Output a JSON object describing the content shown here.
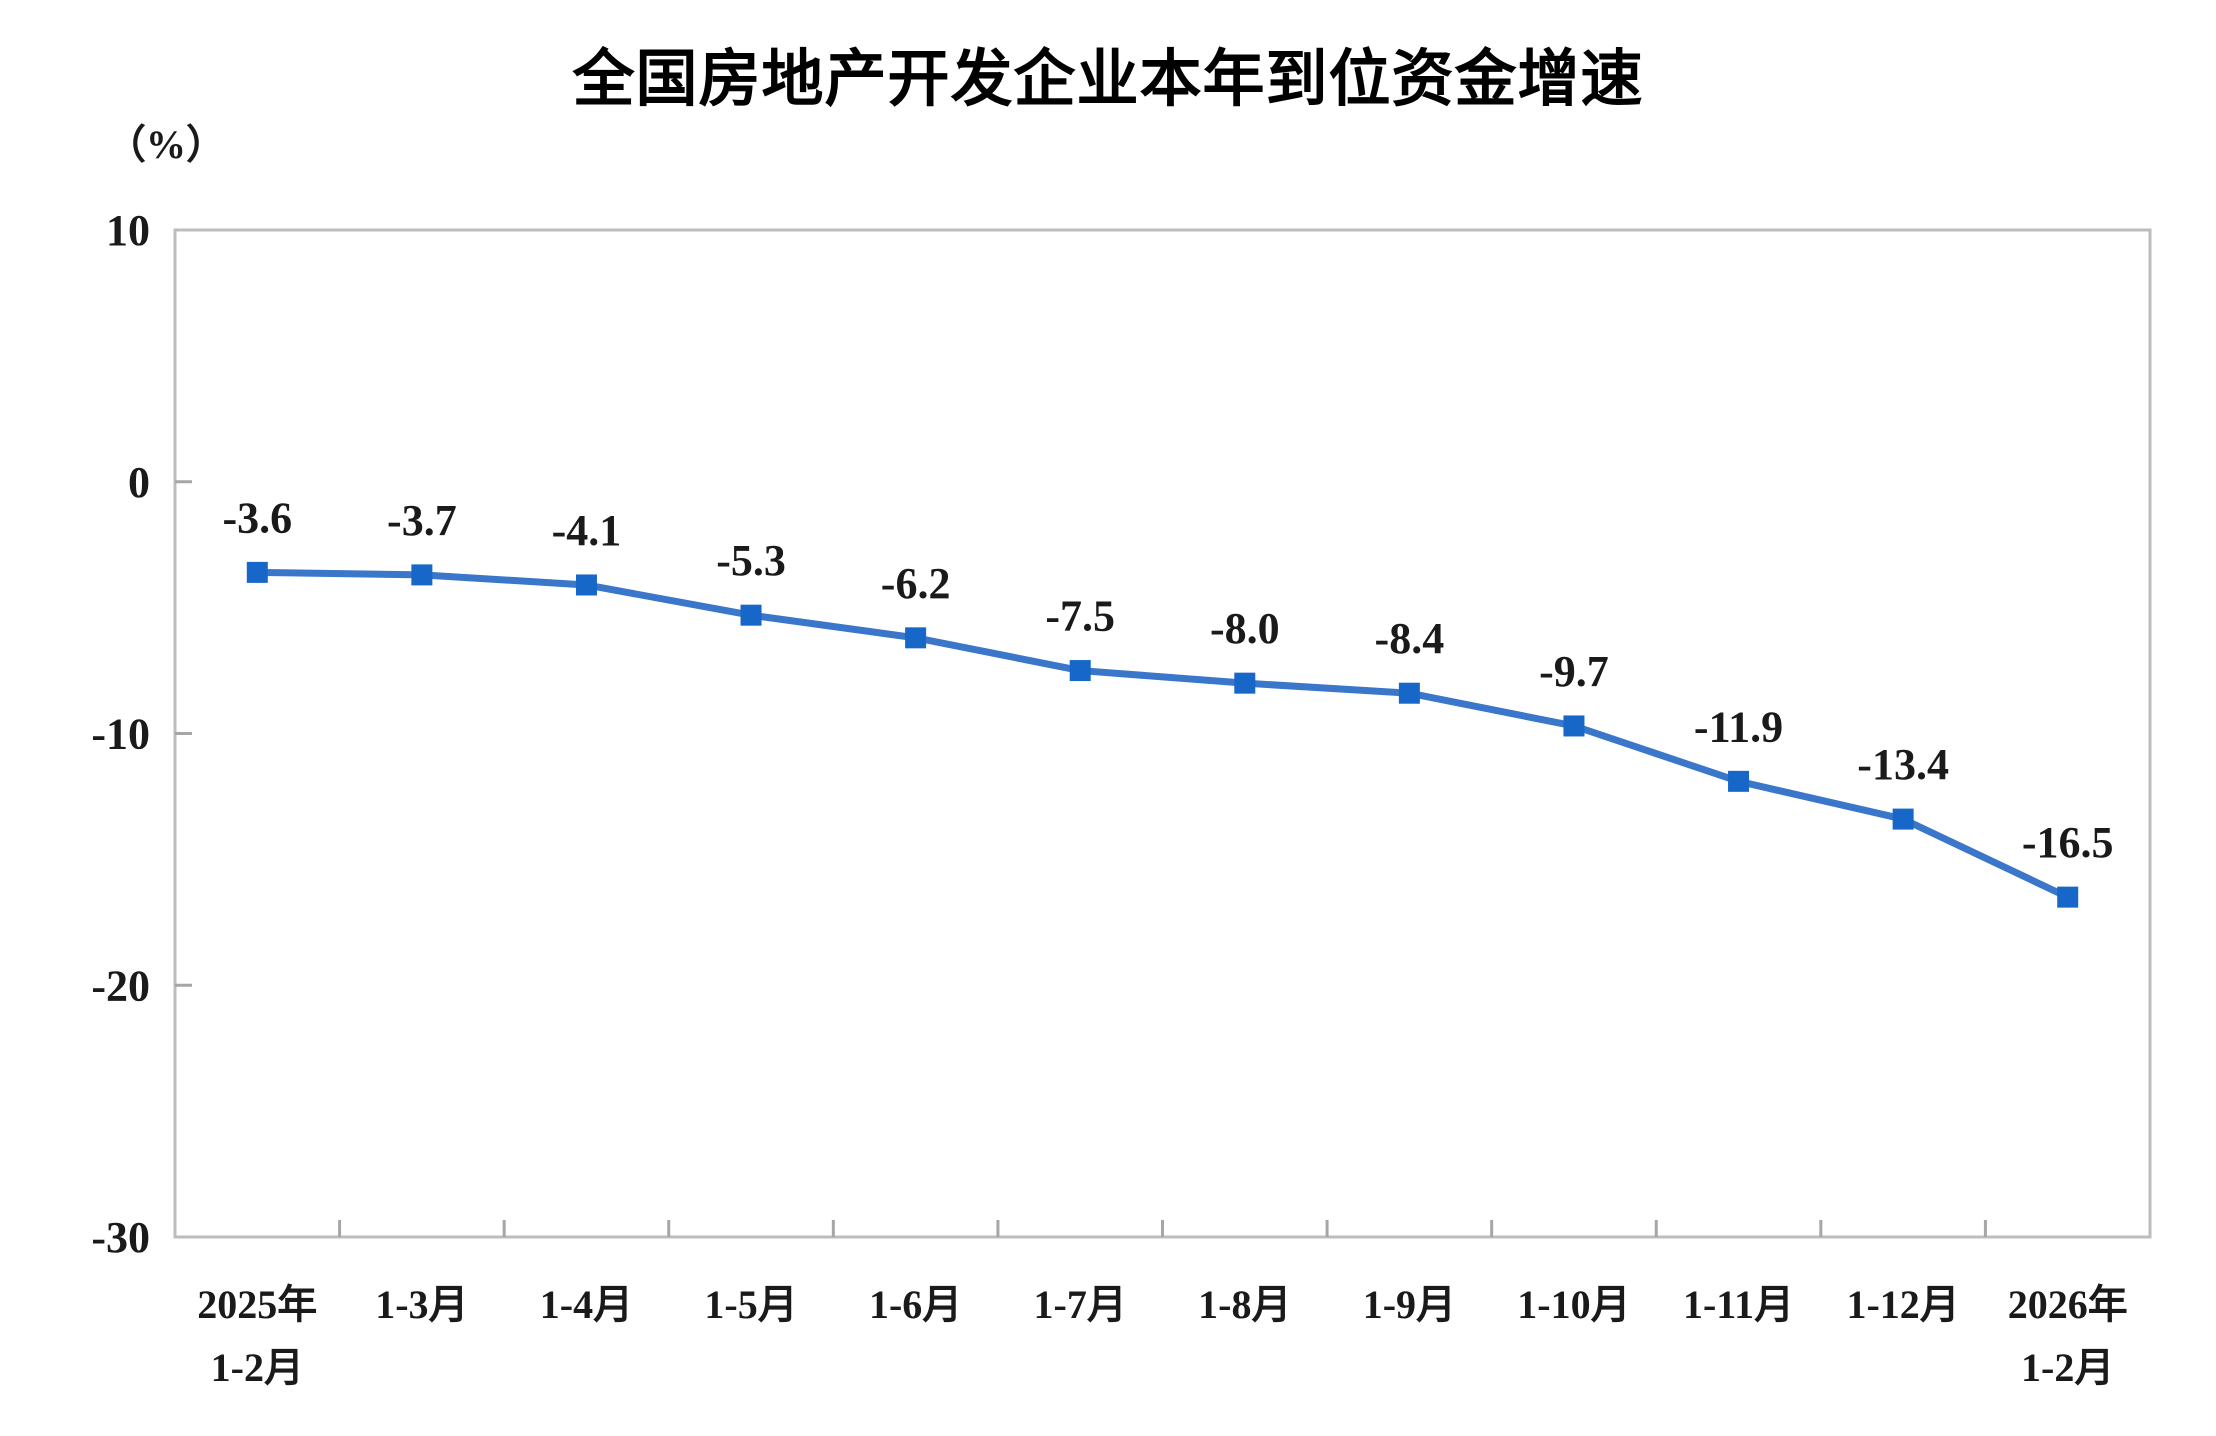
{
  "page": {
    "background_color": "#ffffff"
  },
  "chart_data": {
    "type": "line",
    "title": "全国房地产开发企业本年到位资金增速",
    "unit_label": "（%）",
    "categories": [
      "2025年\n1-2月",
      "1-3月",
      "1-4月",
      "1-5月",
      "1-6月",
      "1-7月",
      "1-8月",
      "1-9月",
      "1-10月",
      "1-11月",
      "1-12月",
      "2026年\n1-2月"
    ],
    "values": [
      -3.6,
      -3.7,
      -4.1,
      -5.3,
      -6.2,
      -7.5,
      -8.0,
      -8.4,
      -9.7,
      -11.9,
      -13.4,
      -16.5
    ],
    "data_labels": [
      "-3.6",
      "-3.7",
      "-4.1",
      "-5.3",
      "-6.2",
      "-7.5",
      "-8.0",
      "-8.4",
      "-9.7",
      "-11.9",
      "-13.4",
      "-16.5"
    ],
    "xlabel": "",
    "ylabel": "",
    "ylim": [
      -30,
      10
    ],
    "yticks": [
      10,
      0,
      -10,
      -20,
      -30
    ],
    "ytick_labels": [
      "10",
      "0",
      "-10",
      "-20",
      "-30"
    ],
    "grid": "off",
    "legend_position": "none",
    "marker_style": "square",
    "line_color": "#3a76c9",
    "marker_color": "#1767c8",
    "axis_color": "#bdbdbd",
    "tick_color": "#a6a6a6",
    "label_color": "#1a1a1a"
  }
}
